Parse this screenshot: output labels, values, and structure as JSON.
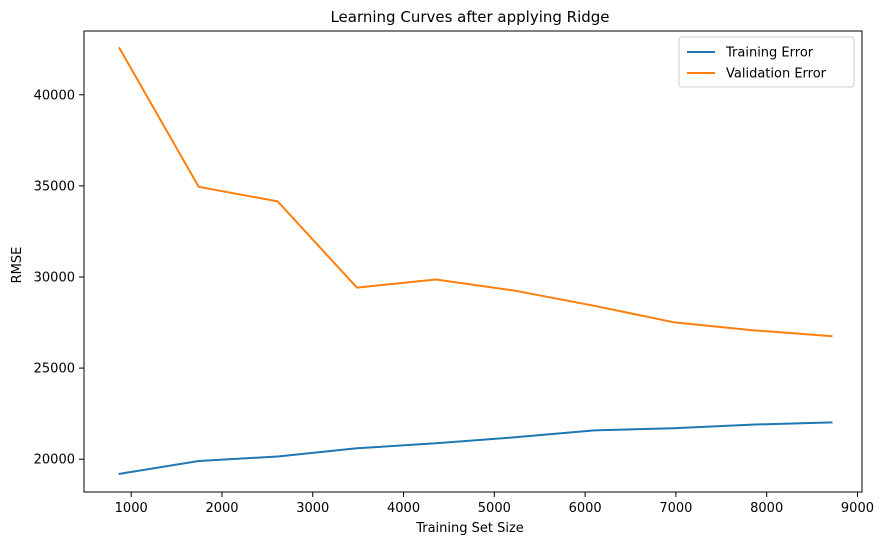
{
  "chart_data": {
    "type": "line",
    "title": "Learning Curves after applying Ridge",
    "xlabel": "Training Set Size",
    "ylabel": "RMSE",
    "xlim": [
      480,
      9050
    ],
    "ylim": [
      18200,
      43500
    ],
    "xticks": [
      1000,
      2000,
      3000,
      4000,
      5000,
      6000,
      7000,
      8000,
      9000
    ],
    "yticks": [
      20000,
      25000,
      30000,
      35000,
      40000
    ],
    "x": [
      871,
      1743,
      2614,
      3486,
      4357,
      5229,
      6100,
      6972,
      7843,
      8714
    ],
    "grid": false,
    "legend_position": "upper right",
    "series": [
      {
        "name": "Training Error",
        "color": "#1f77b4",
        "values": [
          19200,
          19900,
          20150,
          20600,
          20870,
          21200,
          21580,
          21700,
          21900,
          22020
        ]
      },
      {
        "name": "Validation Error",
        "color": "#ff7f0e",
        "values": [
          42550,
          34950,
          34150,
          29420,
          29860,
          29250,
          28420,
          27520,
          27080,
          26750
        ]
      }
    ]
  }
}
